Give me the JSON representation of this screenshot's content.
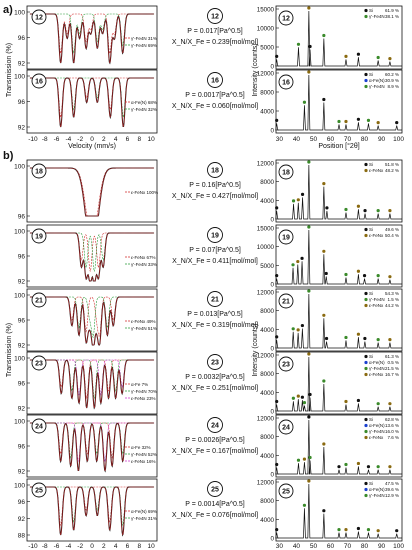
{
  "figure": {
    "panel_a_label": "a)",
    "panel_b_label": "b)",
    "moss_ylabel_a": "Transmission (%)",
    "moss_ylabel_b": "Transmission (%)",
    "moss_xlabel": "Velocity (mm/s)",
    "xrd_ylabel_a": "Intensity (counts)",
    "xrd_ylabel_b": "Intensity (counts)",
    "xrd_xlabel": "Position [°2θ]",
    "moss_top_ticks": [
      "-10",
      "-8",
      "-6",
      "-4",
      "-2",
      "0",
      "2",
      "4",
      "6",
      "8",
      "10"
    ],
    "moss_bottom_ticks": [
      "-10",
      "-8",
      "-6",
      "-4",
      "-2",
      "0",
      "2",
      "4",
      "6",
      "8",
      "10"
    ],
    "xrd_top_ticks": [
      "30",
      "40",
      "50",
      "60",
      "70",
      "80",
      "90",
      "100"
    ],
    "xrd_bottom_ticks": [
      "30",
      "40",
      "50",
      "60",
      "70",
      "80",
      "90",
      "100"
    ]
  },
  "samples": [
    {
      "id": "12",
      "P": "P = 0.017[Pa^0.5]",
      "ratio": "X_N/X_Fe = 0.239[mol/mol]",
      "moss_yticks": [
        "100",
        "96",
        "92"
      ],
      "moss_legend": [
        "γ'-Fe4N 31%",
        "γ'-Fe4N 69%"
      ],
      "xrd_yticks": [
        "15000",
        "10000",
        "5000",
        "0"
      ],
      "xrd_legend": [
        {
          "sym": "Si",
          "val": "61.9 %",
          "color": "#111"
        },
        {
          "sym": "γ'-Fe4N",
          "val": "38.1 %",
          "color": "#3a8a2a"
        }
      ]
    },
    {
      "id": "16",
      "P": "P = 0.0017[Pa^0.5]",
      "ratio": "X_N/X_Fe = 0.060[mol/mol]",
      "moss_yticks": [
        "100",
        "96",
        "92"
      ],
      "moss_legend": [
        "α-Fe(N) 68%",
        "γ'-Fe4N 32%"
      ],
      "xrd_yticks": [
        "12000",
        "8000",
        "4000",
        "0"
      ],
      "xrd_legend": [
        {
          "sym": "Si",
          "val": "60.2 %",
          "color": "#111"
        },
        {
          "sym": "α-Fe(N)",
          "val": "30.9 %",
          "color": "#1a3fd0"
        },
        {
          "sym": "γ'-Fe4N",
          "val": "8.9 %",
          "color": "#3a8a2a"
        }
      ]
    },
    {
      "id": "18",
      "P": "P = 0.16[Pa^0.5]",
      "ratio": "X_N/X_Fe = 0.427[mol/mol]",
      "moss_yticks": [
        "100",
        "96"
      ],
      "moss_legend": [
        "ε-FeNx 100%"
      ],
      "xrd_yticks": [
        "12000",
        "8000",
        "4000",
        "0"
      ],
      "xrd_legend": [
        {
          "sym": "Si",
          "val": "51.8 %",
          "color": "#111"
        },
        {
          "sym": "ε-FeNx",
          "val": "48.2 %",
          "color": "#8a6a10"
        }
      ]
    },
    {
      "id": "19",
      "P": "P = 0.07[Pa^0.5]",
      "ratio": "X_N/X_Fe = 0.411[mol/mol]",
      "moss_yticks": [
        "100",
        "96",
        "92"
      ],
      "moss_legend": [
        "ε-FeNx 67%",
        "γ'-Fe4N 33%"
      ],
      "xrd_yticks": [
        "15000",
        "10000",
        "5000",
        "0"
      ],
      "xrd_legend": [
        {
          "sym": "Si",
          "val": "49.6 %",
          "color": "#111"
        },
        {
          "sym": "ε-FeNx",
          "val": "50.4 %",
          "color": "#8a6a10"
        }
      ]
    },
    {
      "id": "21",
      "P": "P = 0.013[Pa^0.5]",
      "ratio": "X_N/X_Fe = 0.319[mol/mol]",
      "moss_yticks": [
        "100",
        "96",
        "92"
      ],
      "moss_legend": [
        "ε-FeNx 49%",
        "γ'-Fe4N 51%"
      ],
      "xrd_yticks": [
        "12000",
        "8000",
        "4000",
        "0"
      ],
      "xrd_legend": [
        {
          "sym": "Si",
          "val": "54.3 %",
          "color": "#111"
        },
        {
          "sym": "γ'-Fe4N",
          "val": "1.5 %",
          "color": "#3a8a2a"
        },
        {
          "sym": "ε-FeNx",
          "val": "44.2 %",
          "color": "#8a6a10"
        }
      ]
    },
    {
      "id": "23",
      "P": "P = 0.0032[Pa^0.5]",
      "ratio": "X_N/X_Fe = 0.251[mol/mol]",
      "moss_yticks": [
        "100",
        "96",
        "92"
      ],
      "moss_legend": [
        "α-Fe 7%",
        "γ'-Fe4N 70%",
        "ε-FeNx 23%"
      ],
      "xrd_yticks": [
        "12000",
        "8000",
        "4000",
        "0"
      ],
      "xrd_legend": [
        {
          "sym": "Si",
          "val": "61.3 %",
          "color": "#111"
        },
        {
          "sym": "α-Fe(N)",
          "val": "0.5 %",
          "color": "#1a3fd0"
        },
        {
          "sym": "γ'-Fe4N",
          "val": "21.5 %",
          "color": "#3a8a2a"
        },
        {
          "sym": "ε-FeNx",
          "val": "16.7 %",
          "color": "#8a6a10"
        }
      ]
    },
    {
      "id": "24",
      "P": "P = 0.0026[Pa^0.5]",
      "ratio": "X_N/X_Fe = 0.167[mol/mol]",
      "moss_yticks": [
        "100",
        "96",
        "92"
      ],
      "moss_legend": [
        "α-Fe 32%",
        "γ'-Fe4N 52%",
        "ε-FeNx 16%"
      ],
      "xrd_yticks": [
        "12000",
        "8000",
        "4000",
        "0"
      ],
      "xrd_legend": [
        {
          "sym": "Si",
          "val": "62.8 %",
          "color": "#111"
        },
        {
          "sym": "α-Fe(N)",
          "val": "13.6 %",
          "color": "#1a3fd0"
        },
        {
          "sym": "γ'-Fe4N",
          "val": "16.0 %",
          "color": "#3a8a2a"
        },
        {
          "sym": "ε-FeNx",
          "val": "7.6 %",
          "color": "#8a6a10"
        }
      ]
    },
    {
      "id": "25",
      "P": "P = 0.0014[Pa^0.5]",
      "ratio": "X_N/X_Fe = 0.076[mol/mol]",
      "moss_yticks": [
        "100",
        "96",
        "92",
        "88"
      ],
      "moss_legend": [
        "α-Fe(N) 69%",
        "γ'-Fe4N 31%"
      ],
      "xrd_yticks": [
        "12000",
        "8000",
        "4000",
        "0"
      ],
      "xrd_legend": [
        {
          "sym": "Si",
          "val": "47.5 %",
          "color": "#111"
        },
        {
          "sym": "α-Fe(N)",
          "val": "39.6 %",
          "color": "#1a3fd0"
        },
        {
          "sym": "γ'-Fe4N",
          "val": "12.9 %",
          "color": "#3a8a2a"
        }
      ]
    }
  ]
}
